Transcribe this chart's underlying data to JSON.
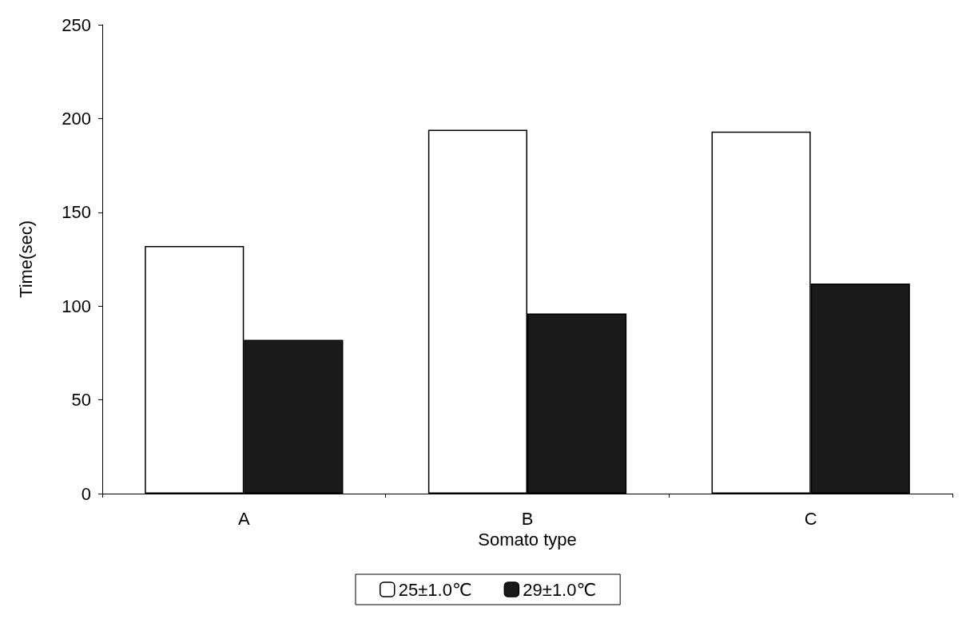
{
  "chart_data": {
    "type": "bar",
    "xlabel": "Somato type",
    "ylabel": "Time(sec)",
    "categories": [
      "A",
      "B",
      "C"
    ],
    "series": [
      {
        "name": "25±1.0℃",
        "color": "#ffffff",
        "values": [
          132,
          194,
          193
        ]
      },
      {
        "name": "29±1.0℃",
        "color": "#1a1a1a",
        "values": [
          82,
          96,
          112
        ]
      }
    ],
    "ylim": [
      0,
      250
    ],
    "yticks": [
      0,
      50,
      100,
      150,
      200,
      250
    ],
    "grid": false,
    "legend": "bottom"
  }
}
